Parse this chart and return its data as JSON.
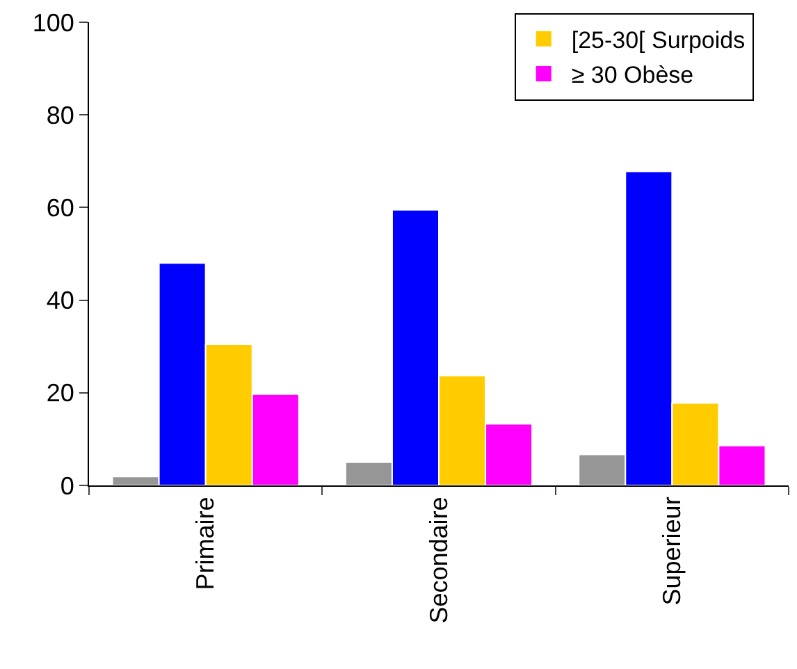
{
  "chart_data": {
    "type": "bar",
    "categories": [
      "Primaire",
      "Secondaire",
      "Superieur"
    ],
    "series": [
      {
        "color": "#969696",
        "values": [
          1.9,
          5.0,
          6.7
        ]
      },
      {
        "color": "#0000ff",
        "values": [
          48.0,
          59.5,
          67.8
        ]
      },
      {
        "name": "[25-30[ Surpoids",
        "color": "#ffcc00",
        "values": [
          30.5,
          23.7,
          17.8
        ]
      },
      {
        "name": "≥ 30 Obèse",
        "color": "#ff00ff",
        "values": [
          19.7,
          13.3,
          8.6
        ]
      }
    ],
    "ylim": [
      0,
      100
    ],
    "yticks": [
      0,
      20,
      40,
      60,
      80,
      100
    ],
    "grid": false,
    "legend": "top right"
  }
}
